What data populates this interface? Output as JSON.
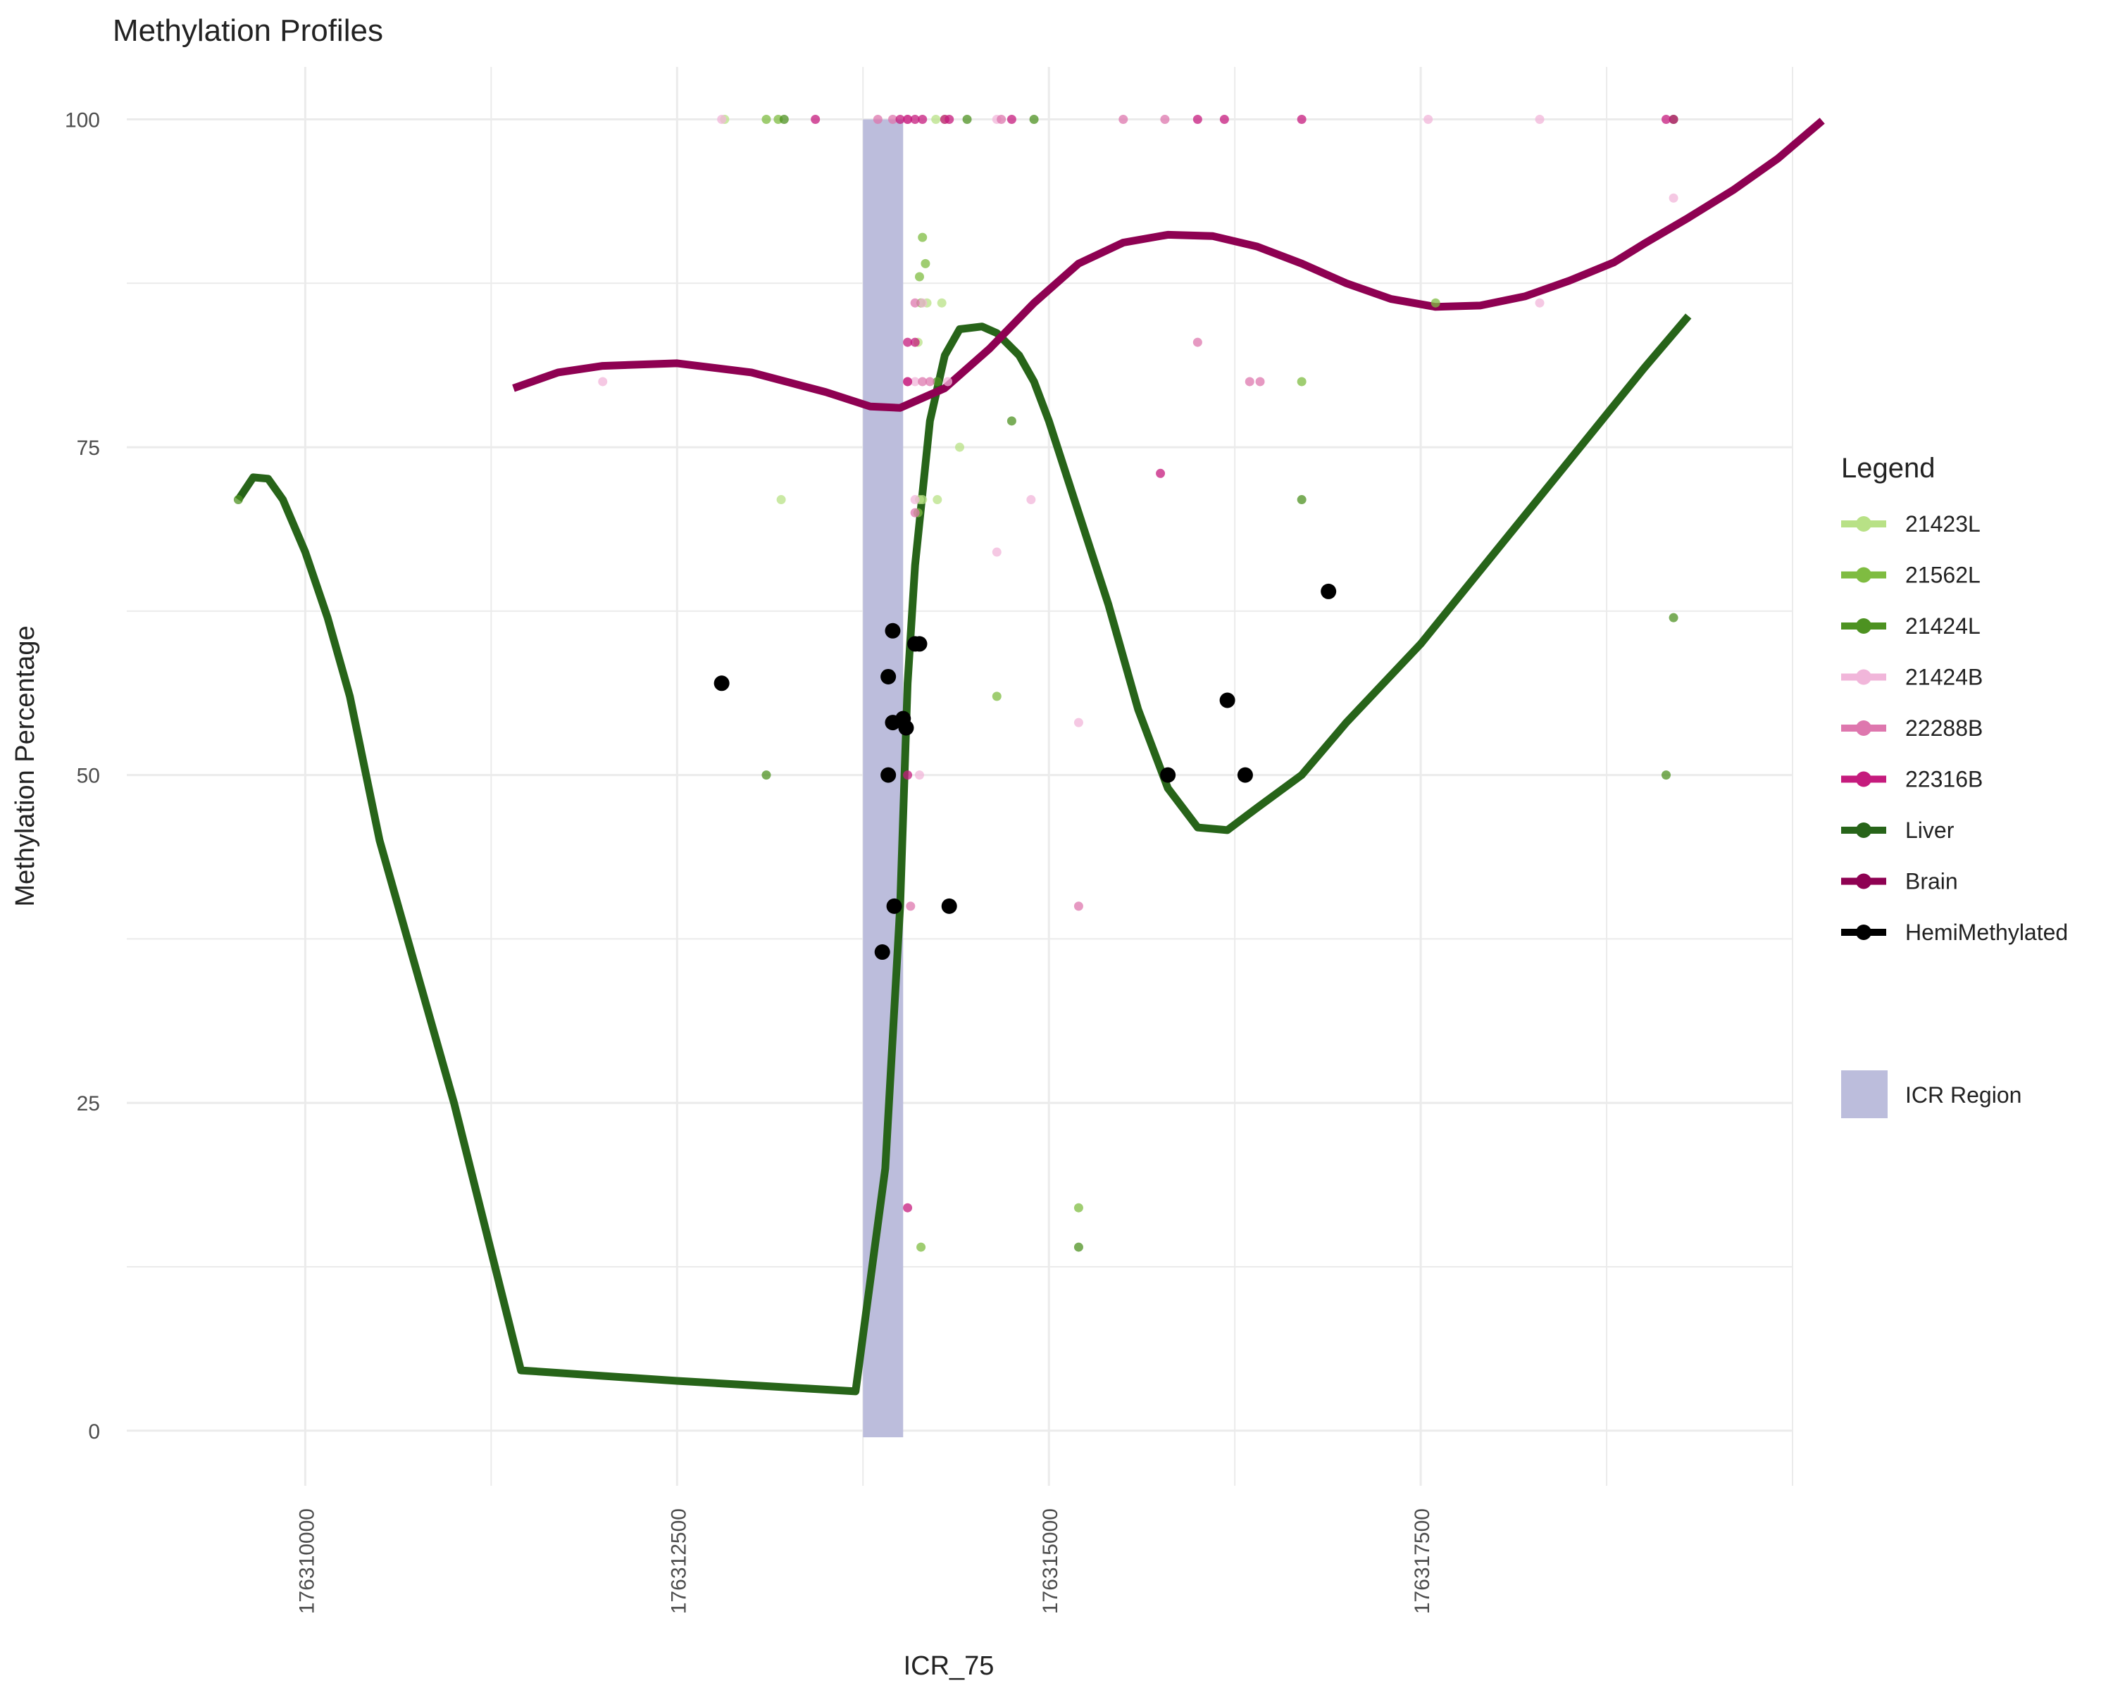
{
  "chart_data": {
    "type": "line",
    "title": "Methylation Profiles",
    "xlabel": "ICR_75",
    "ylabel": "Methylation Percentage",
    "xlim": [
      176308800,
      176320000
    ],
    "ylim": [
      -4.2,
      104
    ],
    "x_ticks": [
      176310000,
      176312500,
      176315000,
      176317500
    ],
    "x_tick_labels": [
      "176310000",
      "176312500",
      "176315000",
      "176317500"
    ],
    "y_ticks": [
      0,
      25,
      50,
      75,
      100
    ],
    "y_tick_labels": [
      "0",
      "25",
      "50",
      "75",
      "100"
    ],
    "grid": true,
    "legend_title": "Legend",
    "legend_position": "right",
    "icr_region": {
      "label": "ICR Region",
      "x_start": 176313750,
      "x_end": 176314020,
      "y_start": -0.5,
      "y_end": 100,
      "color": "#bcbddc"
    },
    "series": [
      {
        "name": "21423L",
        "kind": "points",
        "color": "#b8e186",
        "points": [
          [
            176312820,
            100
          ],
          [
            176313200,
            71
          ],
          [
            176314300,
            100
          ],
          [
            176314120,
            83
          ],
          [
            176314150,
            71
          ],
          [
            176314180,
            86
          ],
          [
            176314250,
            71
          ],
          [
            176314280,
            86
          ],
          [
            176314400,
            75
          ],
          [
            176314130,
            71
          ],
          [
            176314240,
            100
          ]
        ]
      },
      {
        "name": "21562L",
        "kind": "points",
        "color": "#7fbc41",
        "points": [
          [
            176313100,
            100
          ],
          [
            176313180,
            100
          ],
          [
            176314150,
            91
          ],
          [
            176314170,
            89
          ],
          [
            176314130,
            88
          ],
          [
            176314140,
            86
          ],
          [
            176314120,
            70
          ],
          [
            176315200,
            17
          ],
          [
            176314140,
            14
          ],
          [
            176314650,
            56
          ],
          [
            176317600,
            86
          ],
          [
            176316700,
            80
          ]
        ]
      },
      {
        "name": "21424L",
        "kind": "points",
        "color": "#4d9221",
        "points": [
          [
            176313100,
            50
          ],
          [
            176313220,
            100
          ],
          [
            176314250,
            80
          ],
          [
            176314450,
            100
          ],
          [
            176314900,
            100
          ],
          [
            176314750,
            77
          ],
          [
            176315200,
            14
          ],
          [
            176316700,
            71
          ],
          [
            176319200,
            62
          ],
          [
            176319150,
            50
          ],
          [
            176319200,
            100
          ],
          [
            176309550,
            71
          ]
        ]
      },
      {
        "name": "21424B",
        "kind": "points",
        "color": "#f1b6da",
        "points": [
          [
            176312000,
            80
          ],
          [
            176312800,
            100
          ],
          [
            176314050,
            100
          ],
          [
            176314100,
            80
          ],
          [
            176314150,
            86
          ],
          [
            176314320,
            80
          ],
          [
            176314650,
            67
          ],
          [
            176314880,
            71
          ],
          [
            176314650,
            100
          ],
          [
            176314050,
            100
          ],
          [
            176317550,
            100
          ],
          [
            176318300,
            100
          ],
          [
            176319200,
            94
          ],
          [
            176318300,
            86
          ],
          [
            176315200,
            54
          ],
          [
            176314100,
            71
          ],
          [
            176314130,
            50
          ]
        ]
      },
      {
        "name": "22288B",
        "kind": "points",
        "color": "#de77ae",
        "points": [
          [
            176313850,
            100
          ],
          [
            176313950,
            100
          ],
          [
            176314050,
            80
          ],
          [
            176314100,
            86
          ],
          [
            176314150,
            80
          ],
          [
            176314200,
            80
          ],
          [
            176314070,
            40
          ],
          [
            176314680,
            100
          ],
          [
            176315780,
            100
          ],
          [
            176316350,
            80
          ],
          [
            176316420,
            80
          ],
          [
            176315500,
            100
          ],
          [
            176316000,
            83
          ],
          [
            176315200,
            40
          ],
          [
            176314100,
            70
          ]
        ]
      },
      {
        "name": "22316B",
        "kind": "points",
        "color": "#c51b7d",
        "points": [
          [
            176313430,
            100
          ],
          [
            176314000,
            100
          ],
          [
            176314050,
            100
          ],
          [
            176314100,
            100
          ],
          [
            176314150,
            100
          ],
          [
            176314300,
            100
          ],
          [
            176314330,
            100
          ],
          [
            176314750,
            100
          ],
          [
            176316000,
            100
          ],
          [
            176316180,
            100
          ],
          [
            176316700,
            100
          ],
          [
            176319200,
            100
          ],
          [
            176319150,
            100
          ],
          [
            176314050,
            83
          ],
          [
            176314100,
            83
          ],
          [
            176315750,
            73
          ],
          [
            176314050,
            50
          ],
          [
            176314050,
            17
          ],
          [
            176314050,
            80
          ]
        ]
      },
      {
        "name": "Liver",
        "kind": "line",
        "color": "#276419",
        "points": [
          [
            176309550,
            71
          ],
          [
            176309650,
            72.7
          ],
          [
            176309750,
            72.6
          ],
          [
            176309850,
            71
          ],
          [
            176310000,
            67
          ],
          [
            176310150,
            62
          ],
          [
            176310300,
            56
          ],
          [
            176310500,
            45
          ],
          [
            176311000,
            25
          ],
          [
            176311450,
            4.6
          ],
          [
            176312500,
            3.8
          ],
          [
            176313700,
            3
          ],
          [
            176313900,
            20
          ],
          [
            176314000,
            40
          ],
          [
            176314050,
            57
          ],
          [
            176314100,
            66
          ],
          [
            176314200,
            77
          ],
          [
            176314300,
            82
          ],
          [
            176314400,
            84
          ],
          [
            176314550,
            84.2
          ],
          [
            176314650,
            83.7
          ],
          [
            176314800,
            82
          ],
          [
            176314900,
            80
          ],
          [
            176315000,
            77
          ],
          [
            176315200,
            70
          ],
          [
            176315400,
            63
          ],
          [
            176315600,
            55
          ],
          [
            176315800,
            49
          ],
          [
            176316000,
            46
          ],
          [
            176316200,
            45.8
          ],
          [
            176316400,
            47.5
          ],
          [
            176316700,
            50
          ],
          [
            176317000,
            54
          ],
          [
            176317500,
            60
          ],
          [
            176318000,
            67
          ],
          [
            176318500,
            74
          ],
          [
            176319000,
            81
          ],
          [
            176319300,
            85
          ]
        ]
      },
      {
        "name": "Brain",
        "kind": "line",
        "color": "#8e0152",
        "points": [
          [
            176311400,
            79.5
          ],
          [
            176311700,
            80.7
          ],
          [
            176312000,
            81.2
          ],
          [
            176312500,
            81.4
          ],
          [
            176313000,
            80.7
          ],
          [
            176313500,
            79.2
          ],
          [
            176313800,
            78.1
          ],
          [
            176314000,
            78
          ],
          [
            176314300,
            79.5
          ],
          [
            176314600,
            82.5
          ],
          [
            176314900,
            86
          ],
          [
            176315200,
            89
          ],
          [
            176315500,
            90.6
          ],
          [
            176315800,
            91.2
          ],
          [
            176316100,
            91.1
          ],
          [
            176316400,
            90.3
          ],
          [
            176316700,
            89
          ],
          [
            176317000,
            87.5
          ],
          [
            176317300,
            86.3
          ],
          [
            176317600,
            85.7
          ],
          [
            176317900,
            85.8
          ],
          [
            176318200,
            86.5
          ],
          [
            176318500,
            87.7
          ],
          [
            176318800,
            89.1
          ],
          [
            176319000,
            90.5
          ],
          [
            176319300,
            92.5
          ],
          [
            176319600,
            94.6
          ],
          [
            176319900,
            97
          ],
          [
            176320200,
            99.9
          ]
        ]
      },
      {
        "name": "HemiMethylated",
        "kind": "points",
        "color": "#000000",
        "points": [
          [
            176312800,
            57
          ],
          [
            176313880,
            36.5
          ],
          [
            176313920,
            57.5
          ],
          [
            176313950,
            61
          ],
          [
            176313950,
            54
          ],
          [
            176313920,
            50
          ],
          [
            176313960,
            40
          ],
          [
            176314020,
            54.3
          ],
          [
            176314040,
            53.6
          ],
          [
            176314100,
            60
          ],
          [
            176314130,
            60
          ],
          [
            176314330,
            40
          ],
          [
            176315800,
            50
          ],
          [
            176316200,
            55.7
          ],
          [
            176316320,
            50
          ],
          [
            176316880,
            64
          ]
        ]
      }
    ]
  }
}
